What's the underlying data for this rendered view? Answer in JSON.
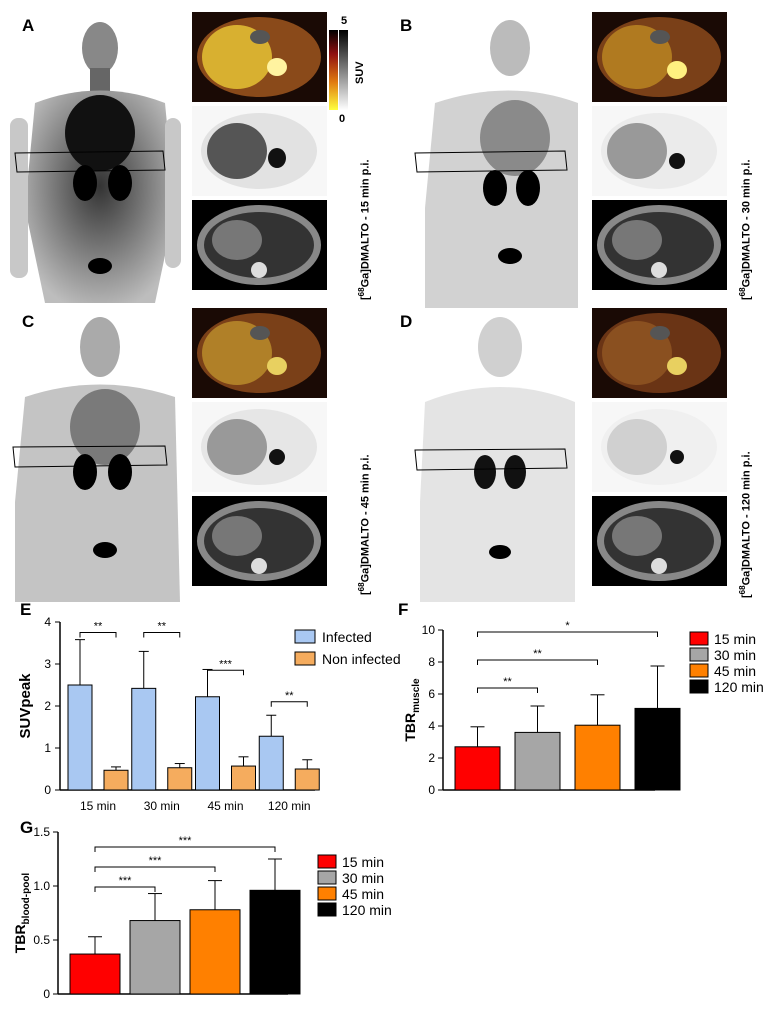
{
  "panels": {
    "a": {
      "letter": "A",
      "caption_tracer": "68",
      "caption_main": "Ga]DMALTO - 15 min p.i."
    },
    "b": {
      "letter": "B",
      "caption_tracer": "68",
      "caption_main": "Ga]DMALTO - 30 min p.i."
    },
    "c": {
      "letter": "C",
      "caption_tracer": "68",
      "caption_main": "Ga]DMALTO - 45 min p.i."
    },
    "d": {
      "letter": "D",
      "caption_tracer": "68",
      "caption_main": "Ga]DMALTO - 120 min p.i."
    },
    "e": {
      "letter": "E"
    },
    "f": {
      "letter": "F"
    },
    "g": {
      "letter": "G"
    }
  },
  "suv_scale": {
    "max": "5",
    "min": "0",
    "label": "SUV"
  },
  "colors": {
    "infected": "#a9c8f2",
    "non_infected": "#f5ac5e",
    "c15": "#ff0000",
    "c30": "#a6a6a6",
    "c45": "#ff8000",
    "c120": "#000000"
  },
  "chart_data": [
    {
      "id": "E",
      "type": "bar",
      "categories": [
        "15 min",
        "30 min",
        "45 min",
        "120 min"
      ],
      "series": [
        {
          "name": "Infected",
          "values": [
            2.5,
            2.42,
            2.22,
            1.28
          ],
          "errors": [
            1.08,
            0.88,
            0.65,
            0.5
          ]
        },
        {
          "name": "Non infected",
          "values": [
            0.47,
            0.53,
            0.57,
            0.5
          ],
          "errors": [
            0.08,
            0.1,
            0.22,
            0.22
          ]
        }
      ],
      "ylabel": "SUVpeak",
      "ylim": [
        0,
        4
      ],
      "yticks": [
        "0",
        "1",
        "2",
        "3",
        "4"
      ],
      "significance": [
        "**",
        "**",
        "***",
        "**"
      ]
    },
    {
      "id": "F",
      "type": "bar",
      "categories": [
        "15 min",
        "30 min",
        "45 min",
        "120 min"
      ],
      "values": [
        2.7,
        3.6,
        4.05,
        5.1
      ],
      "errors": [
        1.25,
        1.65,
        1.9,
        2.65
      ],
      "ylabel_main": "TBR",
      "ylabel_sub": "muscle",
      "ylim": [
        0,
        10
      ],
      "yticks": [
        "0",
        "2",
        "4",
        "6",
        "8",
        "10"
      ],
      "legend": [
        "15 min",
        "30 min",
        "45 min",
        "120 min"
      ],
      "significance": [
        {
          "from": "15 min",
          "to": "30 min",
          "label": "**"
        },
        {
          "from": "15 min",
          "to": "45 min",
          "label": "**"
        },
        {
          "from": "15 min",
          "to": "120 min",
          "label": "*"
        }
      ]
    },
    {
      "id": "G",
      "type": "bar",
      "categories": [
        "15 min",
        "30 min",
        "45 min",
        "120 min"
      ],
      "values": [
        0.37,
        0.68,
        0.78,
        0.96
      ],
      "errors": [
        0.16,
        0.25,
        0.27,
        0.29
      ],
      "ylabel_main": "TBR",
      "ylabel_sub": "blood-pool",
      "ylim": [
        0,
        1.5
      ],
      "yticks": [
        "0",
        "0.5",
        "1.0",
        "1.5"
      ],
      "legend": [
        "15 min",
        "30 min",
        "45 min",
        "120 min"
      ],
      "significance": [
        {
          "from": "15 min",
          "to": "30 min",
          "label": "***"
        },
        {
          "from": "15 min",
          "to": "45 min",
          "label": "***"
        },
        {
          "from": "15 min",
          "to": "120 min",
          "label": "***"
        }
      ]
    }
  ]
}
